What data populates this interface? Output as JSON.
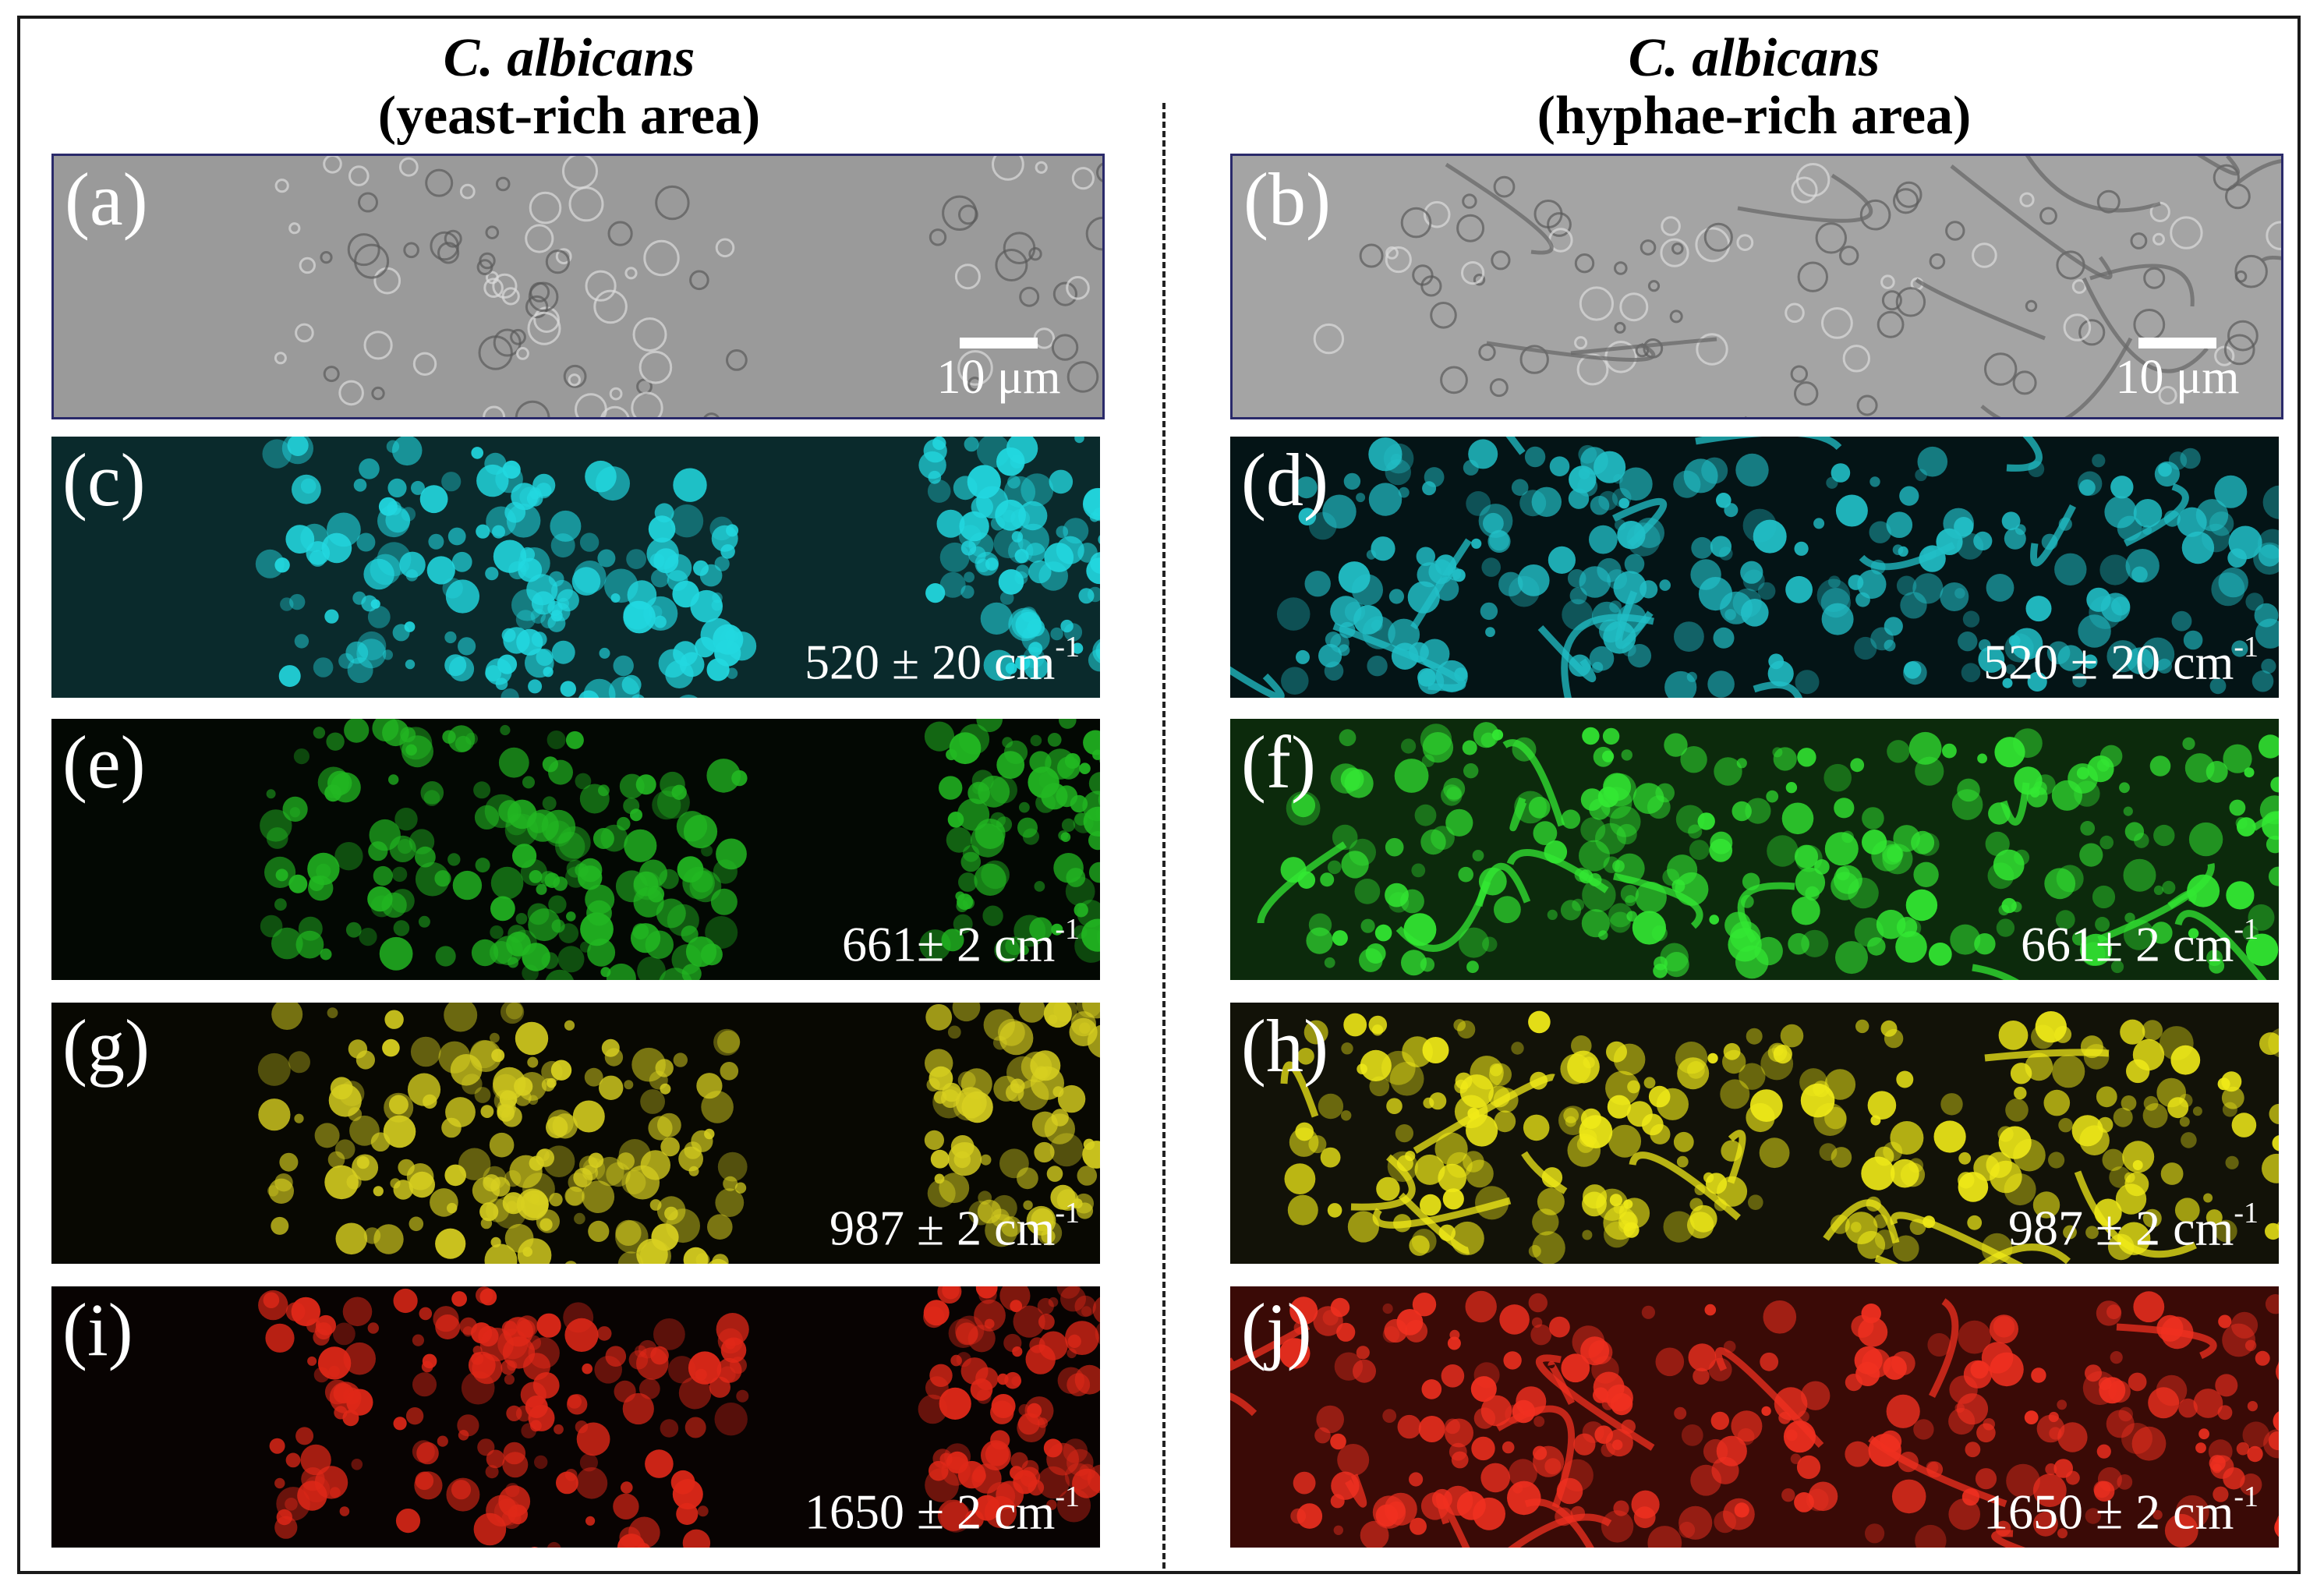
{
  "columns": [
    {
      "species": "C. albicans",
      "area": "(yeast-rich area)"
    },
    {
      "species": "C. albicans",
      "area": "(hyphae-rich area)"
    }
  ],
  "panels": [
    {
      "label": "(a)",
      "band": "",
      "scale": "10 μm",
      "color": "#b0b0b0"
    },
    {
      "label": "(b)",
      "band": "",
      "scale": "10 μm",
      "color": "#b4b4b4"
    },
    {
      "label": "(c)",
      "band": "520 ± 20 cm",
      "sup": "-1",
      "color": "#22d8e0"
    },
    {
      "label": "(d)",
      "band": "520 ± 20 cm",
      "sup": "-1",
      "color": "#22c0c8"
    },
    {
      "label": "(e)",
      "band": "661± 2 cm",
      "sup": "-1",
      "color": "#22b822"
    },
    {
      "label": "(f)",
      "band": "661± 2 cm",
      "sup": "-1",
      "color": "#33e833"
    },
    {
      "label": "(g)",
      "band": "987 ± 2 cm",
      "sup": "-1",
      "color": "#d8d020"
    },
    {
      "label": "(h)",
      "band": "987 ± 2 cm",
      "sup": "-1",
      "color": "#f0ea18"
    },
    {
      "label": "(i)",
      "band": "1650 ± 2 cm",
      "sup": "-1",
      "color": "#e02818"
    },
    {
      "label": "(j)",
      "band": "1650 ± 2 cm",
      "sup": "-1",
      "color": "#f03020"
    }
  ]
}
